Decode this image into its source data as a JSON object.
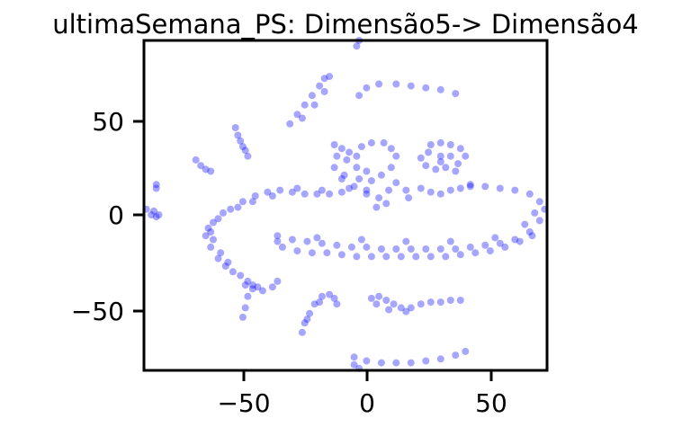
{
  "chart_data": {
    "type": "scatter",
    "title": "ultimaSemana_PS: Dimensão5-> Dimensão4",
    "xlabel": "",
    "ylabel": "",
    "xlim": [
      -90,
      73
    ],
    "ylim": [
      -83,
      91
    ],
    "xticks": [
      -50,
      0,
      50
    ],
    "yticks": [
      -50,
      0,
      50
    ],
    "xtick_labels": [
      "−50",
      "0",
      "50"
    ],
    "ytick_labels": [
      "−50",
      "0",
      "50"
    ],
    "grid": false,
    "point_color": "#0000ff",
    "point_alpha": 0.35,
    "clusters": [
      {
        "name_hint": "c1",
        "points": [
          [
            -89,
            2
          ],
          [
            -87,
            -1
          ],
          [
            -86,
            1
          ],
          [
            -85,
            -2
          ],
          [
            -84,
            -1
          ]
        ]
      },
      {
        "name_hint": "c2",
        "points": [
          [
            -85,
            15
          ],
          [
            -85,
            13
          ]
        ]
      },
      {
        "name_hint": "c3",
        "points": [
          [
            -69,
            28
          ],
          [
            -67,
            25
          ],
          [
            -65,
            23
          ],
          [
            -63,
            22
          ]
        ]
      },
      {
        "name_hint": "c4",
        "points": [
          [
            -53,
            45
          ],
          [
            -52,
            41
          ],
          [
            -51,
            38
          ],
          [
            -50,
            35
          ],
          [
            -49,
            33
          ],
          [
            -48,
            30
          ]
        ]
      },
      {
        "name_hint": "c5",
        "points": [
          [
            -31,
            47
          ],
          [
            -28,
            52
          ],
          [
            -25,
            57
          ],
          [
            -22,
            62
          ],
          [
            -19,
            67
          ],
          [
            -17,
            71
          ],
          [
            -15,
            72
          ],
          [
            -17,
            64
          ],
          [
            -21,
            57
          ],
          [
            -26,
            50
          ]
        ]
      },
      {
        "name_hint": "c6",
        "points": [
          [
            -4,
            88
          ],
          [
            -3,
            91
          ]
        ]
      },
      {
        "name_hint": "c7",
        "points": [
          [
            -3,
            62
          ],
          [
            0,
            66
          ],
          [
            5,
            68
          ],
          [
            12,
            68
          ],
          [
            18,
            67
          ],
          [
            24,
            66
          ],
          [
            30,
            65
          ],
          [
            36,
            63
          ]
        ]
      },
      {
        "name_hint": "c8",
        "points": [
          [
            -13,
            36
          ],
          [
            -10,
            34
          ],
          [
            -7,
            32
          ],
          [
            -4,
            30
          ],
          [
            -2,
            35
          ],
          [
            2,
            37
          ],
          [
            7,
            37
          ],
          [
            10,
            34
          ],
          [
            12,
            30
          ],
          [
            10,
            24
          ],
          [
            6,
            20
          ],
          [
            2,
            17
          ],
          [
            0,
            22
          ],
          [
            -4,
            24
          ],
          [
            -8,
            28
          ],
          [
            -12,
            30
          ],
          [
            -13,
            24
          ],
          [
            -10,
            18
          ],
          [
            -5,
            14
          ],
          [
            0,
            10
          ],
          [
            5,
            8
          ],
          [
            9,
            12
          ],
          [
            12,
            16
          ],
          [
            16,
            12
          ],
          [
            17,
            8
          ],
          [
            8,
            5
          ],
          [
            4,
            3
          ],
          [
            0,
            12
          ],
          [
            -3,
            18
          ],
          [
            -9,
            20
          ]
        ]
      },
      {
        "name_hint": "c9",
        "points": [
          [
            26,
            36
          ],
          [
            30,
            37
          ],
          [
            34,
            36
          ],
          [
            38,
            34
          ],
          [
            40,
            30
          ],
          [
            37,
            26
          ],
          [
            32,
            24
          ],
          [
            28,
            23
          ],
          [
            24,
            25
          ],
          [
            22,
            29
          ],
          [
            25,
            32
          ],
          [
            30,
            30
          ],
          [
            34,
            30
          ],
          [
            36,
            22
          ],
          [
            30,
            27
          ]
        ]
      },
      {
        "name_hint": "c10",
        "points": [
          [
            22,
            13
          ],
          [
            26,
            11
          ],
          [
            30,
            10
          ],
          [
            34,
            12
          ],
          [
            38,
            13
          ],
          [
            42,
            14
          ]
        ]
      },
      {
        "name_hint": "c11",
        "points": [
          [
            -63,
            -10
          ],
          [
            -60,
            -3
          ],
          [
            -55,
            2
          ],
          [
            -50,
            6
          ],
          [
            -45,
            9
          ],
          [
            -40,
            11
          ],
          [
            -35,
            12
          ],
          [
            -30,
            11
          ],
          [
            -25,
            10
          ],
          [
            -20,
            10
          ],
          [
            -15,
            10
          ],
          [
            -10,
            11
          ],
          [
            -7,
            13
          ],
          [
            -18,
            12
          ],
          [
            -28,
            13
          ],
          [
            -38,
            9
          ],
          [
            -46,
            6
          ],
          [
            -52,
            3
          ],
          [
            -58,
            0
          ],
          [
            -62,
            -5
          ],
          [
            -65,
            -12
          ],
          [
            -63,
            -18
          ],
          [
            -60,
            -24
          ],
          [
            -57,
            -28
          ],
          [
            -54,
            -31
          ],
          [
            -51,
            -33
          ],
          [
            -48,
            -36
          ],
          [
            -46,
            -38
          ],
          [
            -64,
            -8
          ],
          [
            -62,
            -14
          ],
          [
            -59,
            -21
          ],
          [
            -56,
            -26
          ]
        ]
      },
      {
        "name_hint": "c12",
        "points": [
          [
            -36,
            -12
          ],
          [
            -30,
            -14
          ],
          [
            -24,
            -15
          ],
          [
            -18,
            -16
          ],
          [
            -12,
            -17
          ],
          [
            -6,
            -18
          ],
          [
            0,
            -18
          ],
          [
            6,
            -19
          ],
          [
            12,
            -19
          ],
          [
            18,
            -19
          ],
          [
            24,
            -19
          ],
          [
            30,
            -19
          ],
          [
            36,
            -19
          ],
          [
            42,
            -18
          ],
          [
            48,
            -17
          ],
          [
            54,
            -16
          ],
          [
            60,
            -14
          ],
          [
            66,
            -10
          ],
          [
            70,
            -4
          ],
          [
            72,
            2
          ],
          [
            70,
            6
          ],
          [
            66,
            10
          ],
          [
            60,
            12
          ],
          [
            54,
            13
          ],
          [
            48,
            14
          ],
          [
            42,
            15
          ],
          [
            -34,
            -18
          ],
          [
            -28,
            -20
          ],
          [
            -22,
            -21
          ],
          [
            -16,
            -21
          ],
          [
            -10,
            -22
          ],
          [
            -4,
            -23
          ],
          [
            2,
            -23
          ],
          [
            8,
            -23
          ],
          [
            14,
            -23
          ],
          [
            20,
            -23
          ],
          [
            26,
            -23
          ],
          [
            32,
            -23
          ],
          [
            38,
            -22
          ],
          [
            44,
            -21
          ],
          [
            50,
            -20
          ],
          [
            56,
            -18
          ],
          [
            62,
            -15
          ],
          [
            67,
            -12
          ],
          [
            -36,
            -15
          ],
          [
            -20,
            -13
          ],
          [
            -2,
            -14
          ],
          [
            16,
            -15
          ],
          [
            34,
            -15
          ],
          [
            52,
            -13
          ],
          [
            64,
            -6
          ],
          [
            68,
            0
          ]
        ]
      },
      {
        "name_hint": "c13",
        "points": [
          [
            -49,
            -38
          ],
          [
            -48,
            -44
          ],
          [
            -49,
            -50
          ],
          [
            -50,
            -55
          ],
          [
            -46,
            -40
          ],
          [
            -42,
            -41
          ],
          [
            -38,
            -39
          ],
          [
            -36,
            -36
          ],
          [
            -44,
            -39
          ]
        ]
      },
      {
        "name_hint": "c14",
        "points": [
          [
            -26,
            -63
          ],
          [
            -25,
            -58
          ],
          [
            -23,
            -53
          ],
          [
            -21,
            -48
          ],
          [
            -18,
            -44
          ],
          [
            -15,
            -43
          ],
          [
            -13,
            -45
          ],
          [
            -12,
            -48
          ],
          [
            -19,
            -47
          ],
          [
            -24,
            -56
          ]
        ]
      },
      {
        "name_hint": "c15",
        "points": [
          [
            2,
            -45
          ],
          [
            5,
            -44
          ],
          [
            8,
            -46
          ],
          [
            11,
            -48
          ],
          [
            14,
            -50
          ],
          [
            18,
            -50
          ],
          [
            22,
            -48
          ],
          [
            26,
            -47
          ],
          [
            30,
            -47
          ],
          [
            34,
            -46
          ],
          [
            38,
            -46
          ],
          [
            4,
            -48
          ],
          [
            9,
            -51
          ],
          [
            16,
            -52
          ]
        ]
      },
      {
        "name_hint": "c16",
        "points": [
          [
            -5,
            -76
          ],
          [
            -5,
            -80
          ],
          [
            0,
            -78
          ],
          [
            6,
            -79
          ],
          [
            12,
            -79
          ],
          [
            18,
            -79
          ],
          [
            24,
            -78
          ],
          [
            30,
            -77
          ],
          [
            36,
            -75
          ],
          [
            40,
            -73
          ],
          [
            -3,
            -82
          ]
        ]
      }
    ]
  }
}
